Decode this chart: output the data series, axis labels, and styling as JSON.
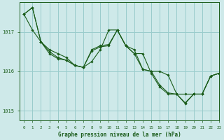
{
  "title": "Graphe pression niveau de la mer (hPa)",
  "background_color": "#cee9e9",
  "grid_color": "#99cccc",
  "line_color": "#1a5c1a",
  "marker_color": "#1a5c1a",
  "xlim": [
    -0.5,
    23
  ],
  "ylim": [
    1014.75,
    1017.75
  ],
  "yticks": [
    1015,
    1016,
    1017
  ],
  "xticks": [
    0,
    1,
    2,
    3,
    4,
    5,
    6,
    7,
    8,
    9,
    10,
    11,
    12,
    13,
    14,
    15,
    16,
    17,
    18,
    19,
    20,
    21,
    22,
    23
  ],
  "series": [
    [
      1017.45,
      1017.62,
      1016.75,
      1016.55,
      1016.45,
      1016.35,
      1016.15,
      1016.1,
      1016.55,
      1016.65,
      1016.68,
      1017.05,
      1016.65,
      1016.55,
      1016.05,
      1016.0,
      1015.65,
      1015.45,
      1015.42,
      1015.2,
      1015.42,
      1015.42,
      1015.88,
      1015.95
    ],
    [
      1017.45,
      1017.05,
      1016.75,
      1016.5,
      1016.35,
      1016.28,
      1016.15,
      1016.1,
      1016.25,
      1016.55,
      1017.05,
      1017.05,
      1016.65,
      1016.45,
      1016.05,
      1016.0,
      1016.0,
      1015.9,
      1015.42,
      1015.42,
      1015.42,
      1015.42,
      1015.88,
      1015.95
    ],
    [
      1017.45,
      1017.62,
      1016.75,
      1016.45,
      1016.32,
      1016.28,
      1016.15,
      1016.1,
      1016.52,
      1016.62,
      1016.65,
      1017.05,
      1016.65,
      1016.45,
      1016.45,
      1015.95,
      1015.6,
      1015.42,
      1015.42,
      1015.18,
      1015.42,
      1015.42,
      1015.88,
      1015.95
    ]
  ]
}
